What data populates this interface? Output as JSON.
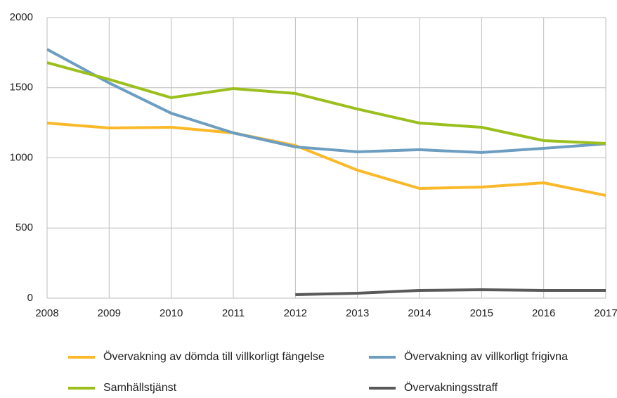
{
  "chart_data": {
    "type": "line",
    "x": [
      2008,
      2009,
      2010,
      2011,
      2012,
      2013,
      2014,
      2015,
      2016,
      2017
    ],
    "xlim": [
      2008,
      2017
    ],
    "xticks": [
      2008,
      2009,
      2010,
      2011,
      2012,
      2013,
      2014,
      2015,
      2016,
      2017
    ],
    "ylim": [
      0,
      2000
    ],
    "yticks": [
      0,
      500,
      1000,
      1500,
      2000
    ],
    "grid": true,
    "legend": "bottom",
    "series": [
      {
        "name": "Övervakning av dömda till villkorligt fängelse",
        "color": "#fbb92a",
        "values": [
          1248,
          1213,
          1218,
          1178,
          1088,
          912,
          782,
          792,
          822,
          732
        ]
      },
      {
        "name": "Övervakning av villkorligt frigivna",
        "color": "#6d9dc0",
        "values": [
          1774,
          1534,
          1318,
          1178,
          1078,
          1043,
          1058,
          1038,
          1068,
          1100
        ]
      },
      {
        "name": "Samhällstjänst",
        "color": "#9bbf1d",
        "values": [
          1679,
          1559,
          1429,
          1494,
          1459,
          1348,
          1248,
          1218,
          1123,
          1103
        ]
      },
      {
        "name": "Övervakningsstraff",
        "color": "#595959",
        "values": [
          null,
          null,
          null,
          null,
          25,
          35,
          55,
          60,
          55,
          55
        ]
      }
    ]
  }
}
